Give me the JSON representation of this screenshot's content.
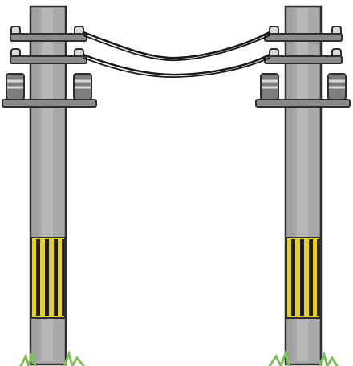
{
  "scene": {
    "subject": "two-utility-poles",
    "colors": {
      "background": "#ffffff",
      "pole_fill": "#a9a9a9",
      "pole_highlight": "#c4c4c4",
      "pole_shadow": "#8f8f8f",
      "outline": "#2e2e2e",
      "crossarm": "#8a8a8a",
      "insulator": "#d9d9d9",
      "transformer": "#7d7d7d",
      "wire": "#1a1a1a",
      "warning_yellow": "#e6cf2c",
      "warning_black": "#1c1c1c",
      "grass": "#7cbf5a"
    },
    "elements": [
      {
        "name": "left-pole",
        "icon": "utility-pole-icon"
      },
      {
        "name": "right-pole",
        "icon": "utility-pole-icon"
      },
      {
        "name": "power-lines",
        "icon": "wire-icon"
      }
    ]
  }
}
